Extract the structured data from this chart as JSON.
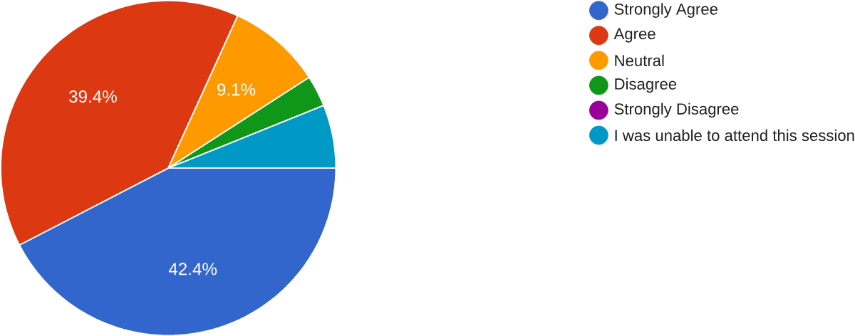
{
  "chart_data": {
    "type": "pie",
    "categories": [
      "Strongly Agree",
      "Agree",
      "Neutral",
      "Disagree",
      "Strongly Disagree",
      "I was unable to attend this session"
    ],
    "values": [
      42.4,
      39.4,
      9.1,
      3.0,
      0,
      6.1
    ],
    "colors": [
      "#3366cc",
      "#dc3912",
      "#ff9900",
      "#109618",
      "#990099",
      "#0099c6"
    ],
    "value_labels": [
      "42.4%",
      "39.4%",
      "9.1%",
      null,
      null,
      null
    ],
    "legend": "right"
  }
}
